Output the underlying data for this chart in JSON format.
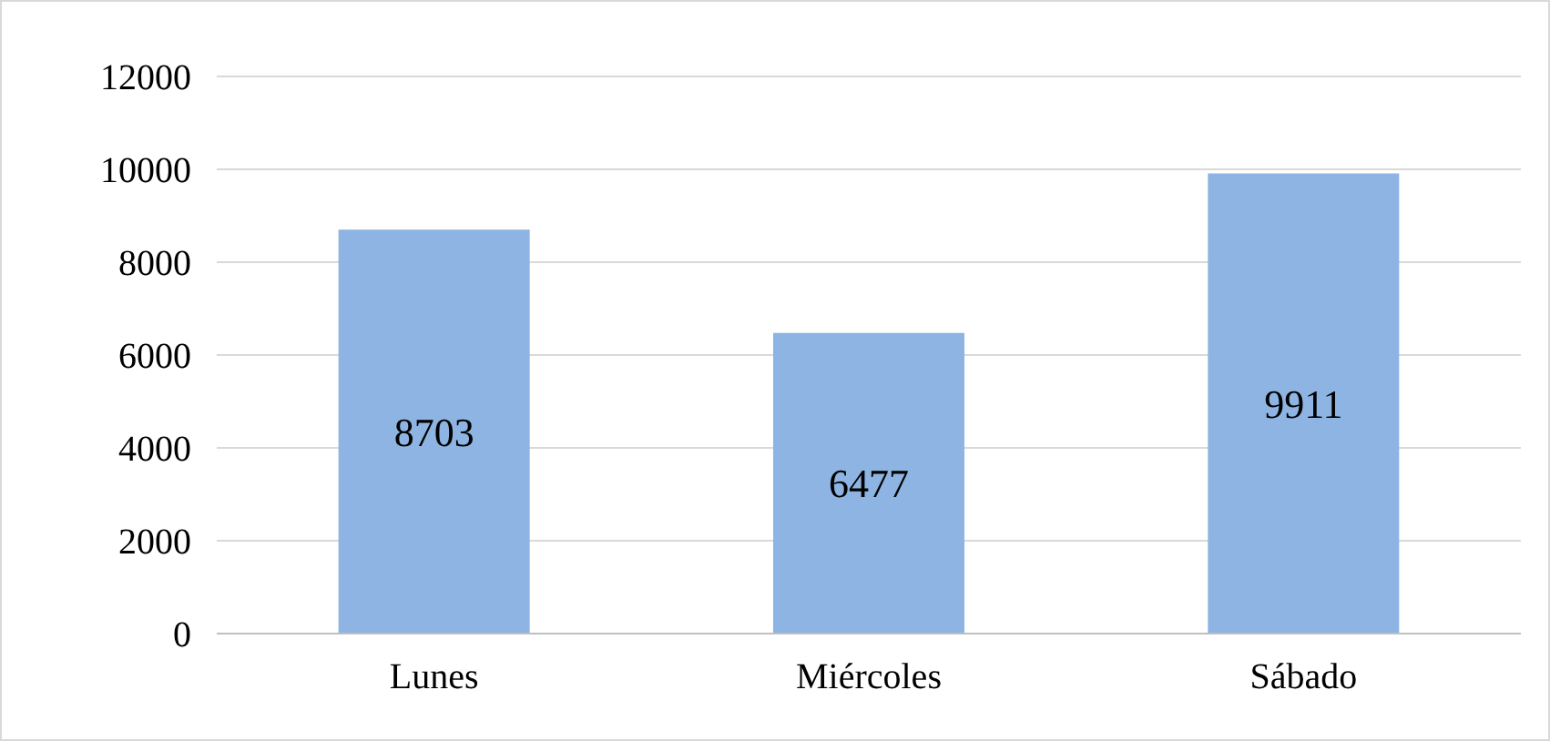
{
  "chart_data": {
    "type": "bar",
    "categories": [
      "Lunes",
      "Miércoles",
      "Sábado"
    ],
    "values": [
      8703,
      6477,
      9911
    ],
    "color": "#8db4e2",
    "ylim": [
      0,
      12000
    ],
    "yticks": [
      0,
      2000,
      4000,
      6000,
      8000,
      10000,
      12000
    ],
    "grid": "y",
    "data_labels": true
  }
}
